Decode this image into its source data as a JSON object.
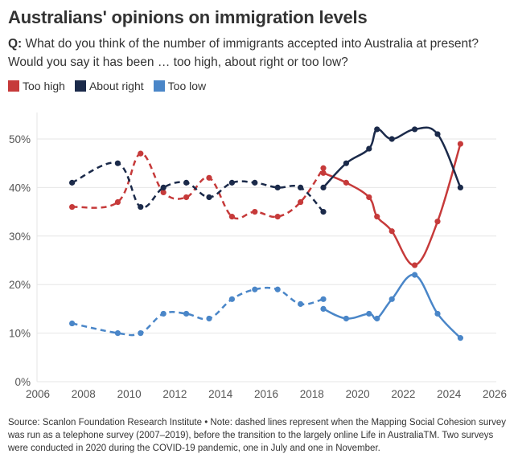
{
  "header": {
    "title": "Australians' opinions on immigration levels",
    "question_prefix": "Q:",
    "question_text": " What do you think of the number of immigrants accepted into Australia at present? Would you say it has been … too high, about right or too low?"
  },
  "legend": [
    {
      "label": "Too high",
      "color": "#c63a3a"
    },
    {
      "label": "About right",
      "color": "#1b2a4a"
    },
    {
      "label": "Too low",
      "color": "#4a86c8"
    }
  ],
  "footnote": "Source: Scanlon Foundation Research Institute • Note: dashed lines represent when the Mapping Social Cohesion survey was run as a telephone survey (2007–2019), before the transition to the largely online Life in AustraliaTM. Two surveys were conducted in 2020 during the COVID-19 pandemic, one in July and one in November.",
  "chart_data": {
    "type": "line",
    "title": "Australians' opinions on immigration levels",
    "xlabel": "",
    "ylabel": "",
    "xlim": [
      2006,
      2026
    ],
    "ylim": [
      0,
      55
    ],
    "x_ticks": [
      2006,
      2008,
      2010,
      2012,
      2014,
      2016,
      2018,
      2020,
      2022,
      2024,
      2026
    ],
    "x_tick_labels": [
      "2006",
      "2008",
      "2010",
      "2012",
      "2014",
      "2016",
      "2018",
      "2020",
      "2022",
      "2024",
      "2026"
    ],
    "y_ticks": [
      0,
      10,
      20,
      30,
      40,
      50
    ],
    "y_tick_labels": [
      "0%",
      "10%",
      "20%",
      "30%",
      "40%",
      "50%"
    ],
    "grid": "horizontal",
    "legend_position": "top-left",
    "series": [
      {
        "name": "Too high",
        "color": "#c63a3a",
        "segments": [
          {
            "style": "dashed",
            "mode": "telephone",
            "x": [
              2007.5,
              2009.5,
              2010.5,
              2011.5,
              2012.5,
              2013.5,
              2014.5,
              2015.5,
              2016.5,
              2017.5,
              2018.5
            ],
            "y": [
              36,
              37,
              47,
              39,
              38,
              42,
              34,
              35,
              34,
              37,
              44
            ]
          },
          {
            "style": "solid",
            "mode": "online",
            "x": [
              2018.5,
              2019.5,
              2020.5,
              2020.85,
              2021.5,
              2022.5,
              2023.5,
              2024.5
            ],
            "y": [
              43,
              41,
              38,
              34,
              31,
              24,
              33,
              49
            ]
          }
        ]
      },
      {
        "name": "About right",
        "color": "#1b2a4a",
        "segments": [
          {
            "style": "dashed",
            "mode": "telephone",
            "x": [
              2007.5,
              2009.5,
              2010.5,
              2011.5,
              2012.5,
              2013.5,
              2014.5,
              2015.5,
              2016.5,
              2017.5,
              2018.5
            ],
            "y": [
              41,
              45,
              36,
              40,
              41,
              38,
              41,
              41,
              40,
              40,
              35
            ]
          },
          {
            "style": "solid",
            "mode": "online",
            "x": [
              2018.5,
              2019.5,
              2020.5,
              2020.85,
              2021.5,
              2022.5,
              2023.5,
              2024.5
            ],
            "y": [
              40,
              45,
              48,
              52,
              50,
              52,
              51,
              40
            ]
          }
        ]
      },
      {
        "name": "Too low",
        "color": "#4a86c8",
        "segments": [
          {
            "style": "dashed",
            "mode": "telephone",
            "x": [
              2007.5,
              2009.5,
              2010.5,
              2011.5,
              2012.5,
              2013.5,
              2014.5,
              2015.5,
              2016.5,
              2017.5,
              2018.5
            ],
            "y": [
              12,
              10,
              10,
              14,
              14,
              13,
              17,
              19,
              19,
              16,
              17
            ]
          },
          {
            "style": "solid",
            "mode": "online",
            "x": [
              2018.5,
              2019.5,
              2020.5,
              2020.85,
              2021.5,
              2022.5,
              2023.5,
              2024.5
            ],
            "y": [
              15,
              13,
              14,
              13,
              17,
              22,
              14,
              9
            ]
          }
        ]
      }
    ]
  }
}
